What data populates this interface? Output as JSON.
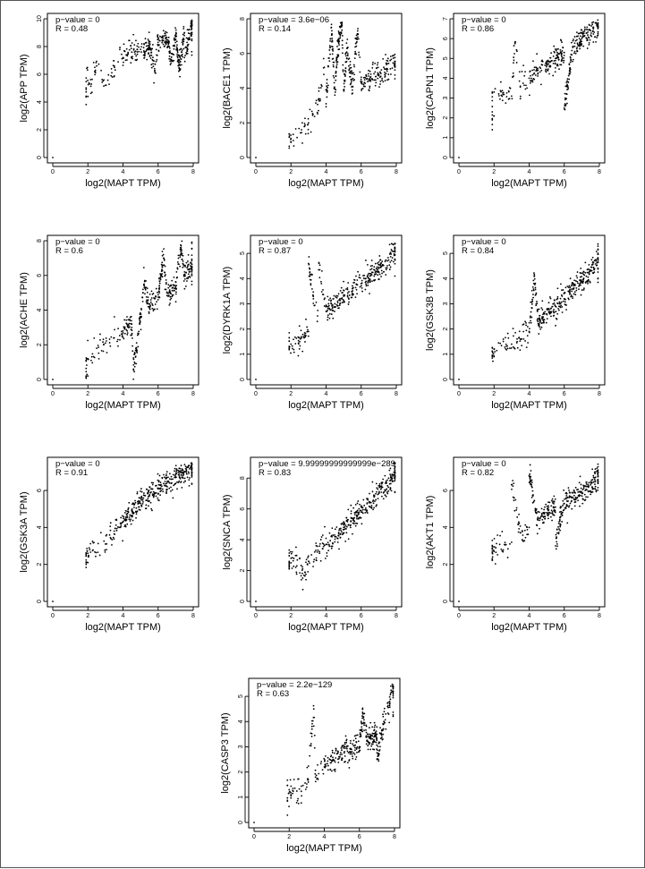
{
  "chart_data": [
    {
      "type": "scatter",
      "xlabel": "log2(MAPT TPM)",
      "ylabel": "log2(APP TPM)",
      "annotations": [
        "p−value = 0",
        "R = 0.48"
      ],
      "xlim": [
        0,
        8
      ],
      "ylim": [
        0,
        10
      ],
      "xticks": [
        0,
        2,
        4,
        6,
        8
      ],
      "yticks": [
        0,
        2,
        4,
        6,
        8,
        10
      ],
      "points": [
        [
          0,
          0
        ],
        [
          2.0,
          4.4
        ],
        [
          2.1,
          5.3
        ],
        [
          2.5,
          6.6
        ],
        [
          3.0,
          5.2
        ],
        [
          3.5,
          6.6
        ],
        [
          4.0,
          7.2
        ],
        [
          4.5,
          7.6
        ],
        [
          5.0,
          7.8
        ],
        [
          5.5,
          8.1
        ],
        [
          6.0,
          8.3
        ],
        [
          6.5,
          8.5
        ],
        [
          7.0,
          8.7
        ],
        [
          7.5,
          9.0
        ],
        [
          7.9,
          9.6
        ],
        [
          7.5,
          7.2
        ],
        [
          6.8,
          7.0
        ],
        [
          5.8,
          6.4
        ],
        [
          7.2,
          6.4
        ]
      ]
    },
    {
      "type": "scatter",
      "xlabel": "log2(MAPT TPM)",
      "ylabel": "log2(BACE1 TPM)",
      "annotations": [
        "p−value = 3.6e−06",
        "R = 0.14"
      ],
      "xlim": [
        0,
        8
      ],
      "ylim": [
        0,
        8
      ],
      "xticks": [
        0,
        2,
        4,
        6,
        8
      ],
      "yticks": [
        0,
        2,
        4,
        6,
        8
      ],
      "points": [
        [
          0,
          0
        ],
        [
          2.0,
          1.1
        ],
        [
          2.0,
          0.9
        ],
        [
          2.6,
          1.6
        ],
        [
          3.0,
          2.0
        ],
        [
          3.5,
          2.6
        ],
        [
          4.0,
          3.1
        ],
        [
          4.5,
          3.6
        ],
        [
          5.0,
          3.9
        ],
        [
          5.5,
          4.1
        ],
        [
          6.0,
          4.3
        ],
        [
          6.5,
          4.5
        ],
        [
          7.0,
          4.8
        ],
        [
          7.5,
          5.1
        ],
        [
          7.9,
          5.3
        ],
        [
          4.3,
          7.5
        ],
        [
          5.2,
          6.3
        ],
        [
          4.6,
          5.7
        ],
        [
          5.8,
          7.3
        ],
        [
          3.9,
          5.2
        ],
        [
          4.9,
          7.8
        ]
      ]
    },
    {
      "type": "scatter",
      "xlabel": "log2(MAPT TPM)",
      "ylabel": "log2(CAPN1 TPM)",
      "annotations": [
        "p−value = 0",
        "R = 0.86"
      ],
      "xlim": [
        0,
        8
      ],
      "ylim": [
        0,
        7
      ],
      "xticks": [
        0,
        2,
        4,
        6,
        8
      ],
      "yticks": [
        0,
        1,
        2,
        3,
        4,
        5,
        6,
        7
      ],
      "points": [
        [
          0,
          0
        ],
        [
          2.0,
          2.1
        ],
        [
          2.0,
          3.3
        ],
        [
          3.0,
          3.1
        ],
        [
          3.5,
          3.6
        ],
        [
          4.0,
          4.0
        ],
        [
          4.5,
          4.4
        ],
        [
          5.0,
          4.7
        ],
        [
          5.5,
          5.0
        ],
        [
          6.0,
          5.3
        ],
        [
          6.5,
          5.6
        ],
        [
          7.0,
          6.0
        ],
        [
          7.5,
          6.4
        ],
        [
          7.9,
          6.7
        ],
        [
          6.0,
          2.5
        ],
        [
          3.2,
          5.8
        ]
      ]
    },
    {
      "type": "scatter",
      "xlabel": "log2(MAPT TPM)",
      "ylabel": "log2(ACHE TPM)",
      "annotations": [
        "p−value = 0",
        "R = 0.6"
      ],
      "xlim": [
        0,
        8
      ],
      "ylim": [
        0,
        8
      ],
      "xticks": [
        0,
        2,
        4,
        6,
        8
      ],
      "yticks": [
        0,
        2,
        4,
        6,
        8
      ],
      "points": [
        [
          0,
          0
        ],
        [
          2.0,
          0.2
        ],
        [
          2.0,
          1.2
        ],
        [
          2.5,
          1.8
        ],
        [
          3.0,
          2.1
        ],
        [
          3.5,
          2.4
        ],
        [
          4.0,
          2.8
        ],
        [
          4.5,
          3.2
        ],
        [
          5.0,
          3.6
        ],
        [
          5.5,
          4.2
        ],
        [
          6.0,
          4.6
        ],
        [
          6.5,
          5.0
        ],
        [
          7.0,
          5.4
        ],
        [
          7.5,
          6.0
        ],
        [
          7.9,
          6.5
        ],
        [
          5.2,
          5.5
        ],
        [
          6.3,
          7.2
        ],
        [
          7.3,
          7.6
        ],
        [
          7.9,
          8.3
        ],
        [
          4.6,
          0.6
        ]
      ]
    },
    {
      "type": "scatter",
      "xlabel": "log2(MAPT TPM)",
      "ylabel": "log2(DYRK1A TPM)",
      "annotations": [
        "p−value = 0",
        "R = 0.87"
      ],
      "xlim": [
        0,
        8
      ],
      "ylim": [
        0,
        5.5
      ],
      "xticks": [
        0,
        2,
        4,
        6,
        8
      ],
      "yticks": [
        0,
        1,
        2,
        3,
        4,
        5
      ],
      "points": [
        [
          0,
          0
        ],
        [
          2.0,
          1.4
        ],
        [
          2.5,
          1.5
        ],
        [
          3.0,
          1.9
        ],
        [
          3.5,
          2.3
        ],
        [
          4.0,
          2.7
        ],
        [
          4.5,
          3.0
        ],
        [
          5.0,
          3.3
        ],
        [
          5.5,
          3.6
        ],
        [
          6.0,
          3.8
        ],
        [
          6.5,
          4.1
        ],
        [
          7.0,
          4.4
        ],
        [
          7.5,
          4.7
        ],
        [
          7.9,
          5.1
        ],
        [
          3.0,
          4.6
        ],
        [
          3.6,
          4.6
        ]
      ]
    },
    {
      "type": "scatter",
      "xlabel": "log2(MAPT TPM)",
      "ylabel": "log2(GSK3B TPM)",
      "annotations": [
        "p−value = 0",
        "R = 0.84"
      ],
      "xlim": [
        0,
        8
      ],
      "ylim": [
        0,
        5.5
      ],
      "xticks": [
        0,
        2,
        4,
        6,
        8
      ],
      "yticks": [
        0,
        1,
        2,
        3,
        4,
        5
      ],
      "points": [
        [
          0,
          0
        ],
        [
          2.0,
          0.9
        ],
        [
          2.0,
          1.2
        ],
        [
          3.0,
          1.4
        ],
        [
          3.5,
          1.6
        ],
        [
          4.0,
          1.9
        ],
        [
          4.5,
          2.3
        ],
        [
          5.0,
          2.6
        ],
        [
          5.5,
          2.9
        ],
        [
          6.0,
          3.2
        ],
        [
          6.5,
          3.6
        ],
        [
          7.0,
          3.9
        ],
        [
          7.5,
          4.3
        ],
        [
          7.9,
          4.8
        ],
        [
          4.3,
          4.1
        ]
      ]
    },
    {
      "type": "scatter",
      "xlabel": "log2(MAPT TPM)",
      "ylabel": "log2(GSK3A TPM)",
      "annotations": [
        "p−value = 0",
        "R = 0.91"
      ],
      "xlim": [
        0,
        8
      ],
      "ylim": [
        0,
        7.5
      ],
      "xticks": [
        0,
        2,
        4,
        6,
        8
      ],
      "yticks": [
        0,
        2,
        4,
        6
      ],
      "points": [
        [
          0,
          0
        ],
        [
          2.0,
          2.1
        ],
        [
          2.0,
          2.6
        ],
        [
          3.0,
          3.1
        ],
        [
          3.5,
          3.8
        ],
        [
          4.0,
          4.3
        ],
        [
          4.5,
          4.9
        ],
        [
          5.0,
          5.3
        ],
        [
          5.5,
          5.7
        ],
        [
          6.0,
          6.1
        ],
        [
          6.5,
          6.4
        ],
        [
          7.0,
          6.7
        ],
        [
          7.5,
          7.0
        ],
        [
          7.9,
          7.3
        ]
      ]
    },
    {
      "type": "scatter",
      "xlabel": "log2(MAPT TPM)",
      "ylabel": "log2(SNCA TPM)",
      "annotations": [
        "p−value = 9.99999999999999e−289",
        "R = 0.83"
      ],
      "xlim": [
        0,
        8
      ],
      "ylim": [
        0,
        9
      ],
      "xticks": [
        0,
        2,
        4,
        6,
        8
      ],
      "yticks": [
        0,
        2,
        4,
        6,
        8
      ],
      "points": [
        [
          0,
          0
        ],
        [
          2.0,
          2.5
        ],
        [
          2.0,
          2.8
        ],
        [
          3.0,
          2.6
        ],
        [
          3.5,
          3.2
        ],
        [
          4.0,
          3.7
        ],
        [
          4.5,
          4.2
        ],
        [
          5.0,
          4.8
        ],
        [
          5.5,
          5.4
        ],
        [
          6.0,
          5.9
        ],
        [
          6.5,
          6.4
        ],
        [
          7.0,
          7.0
        ],
        [
          7.5,
          7.5
        ],
        [
          7.9,
          8.4
        ],
        [
          2.8,
          1.9
        ]
      ]
    },
    {
      "type": "scatter",
      "xlabel": "log2(MAPT TPM)",
      "ylabel": "log2(AKT1 TPM)",
      "annotations": [
        "p−value = 0",
        "R = 0.82"
      ],
      "xlim": [
        0,
        8
      ],
      "ylim": [
        0,
        7.5
      ],
      "xticks": [
        0,
        2,
        4,
        6,
        8
      ],
      "yticks": [
        0,
        2,
        4,
        6
      ],
      "points": [
        [
          0,
          0
        ],
        [
          2.0,
          2.7
        ],
        [
          2.1,
          2.9
        ],
        [
          3.0,
          3.2
        ],
        [
          3.5,
          3.7
        ],
        [
          4.0,
          4.0
        ],
        [
          4.5,
          4.4
        ],
        [
          5.0,
          4.8
        ],
        [
          5.5,
          5.1
        ],
        [
          6.0,
          5.3
        ],
        [
          6.5,
          5.6
        ],
        [
          7.0,
          5.9
        ],
        [
          7.5,
          6.3
        ],
        [
          7.9,
          6.9
        ],
        [
          3.0,
          6.3
        ],
        [
          5.5,
          3.0
        ],
        [
          4.0,
          6.8
        ]
      ]
    },
    {
      "type": "scatter",
      "xlabel": "log2(MAPT TPM)",
      "ylabel": "log2(CASP3 TPM)",
      "annotations": [
        "p−value = 2.2e−129",
        "R = 0.63"
      ],
      "xlim": [
        0,
        8
      ],
      "ylim": [
        0,
        5.5
      ],
      "xticks": [
        0,
        2,
        4,
        6,
        8
      ],
      "yticks": [
        0,
        1,
        2,
        3,
        4,
        5
      ],
      "points": [
        [
          0,
          0
        ],
        [
          2.0,
          1.3
        ],
        [
          2.1,
          1.1
        ],
        [
          3.0,
          1.4
        ],
        [
          3.5,
          1.8
        ],
        [
          4.0,
          2.2
        ],
        [
          4.5,
          2.5
        ],
        [
          5.0,
          2.7
        ],
        [
          5.5,
          2.9
        ],
        [
          6.0,
          3.0
        ],
        [
          6.5,
          3.2
        ],
        [
          7.0,
          3.5
        ],
        [
          7.5,
          4.3
        ],
        [
          7.9,
          5.2
        ],
        [
          3.4,
          4.5
        ],
        [
          7.0,
          2.5
        ],
        [
          6.2,
          4.3
        ]
      ]
    }
  ]
}
